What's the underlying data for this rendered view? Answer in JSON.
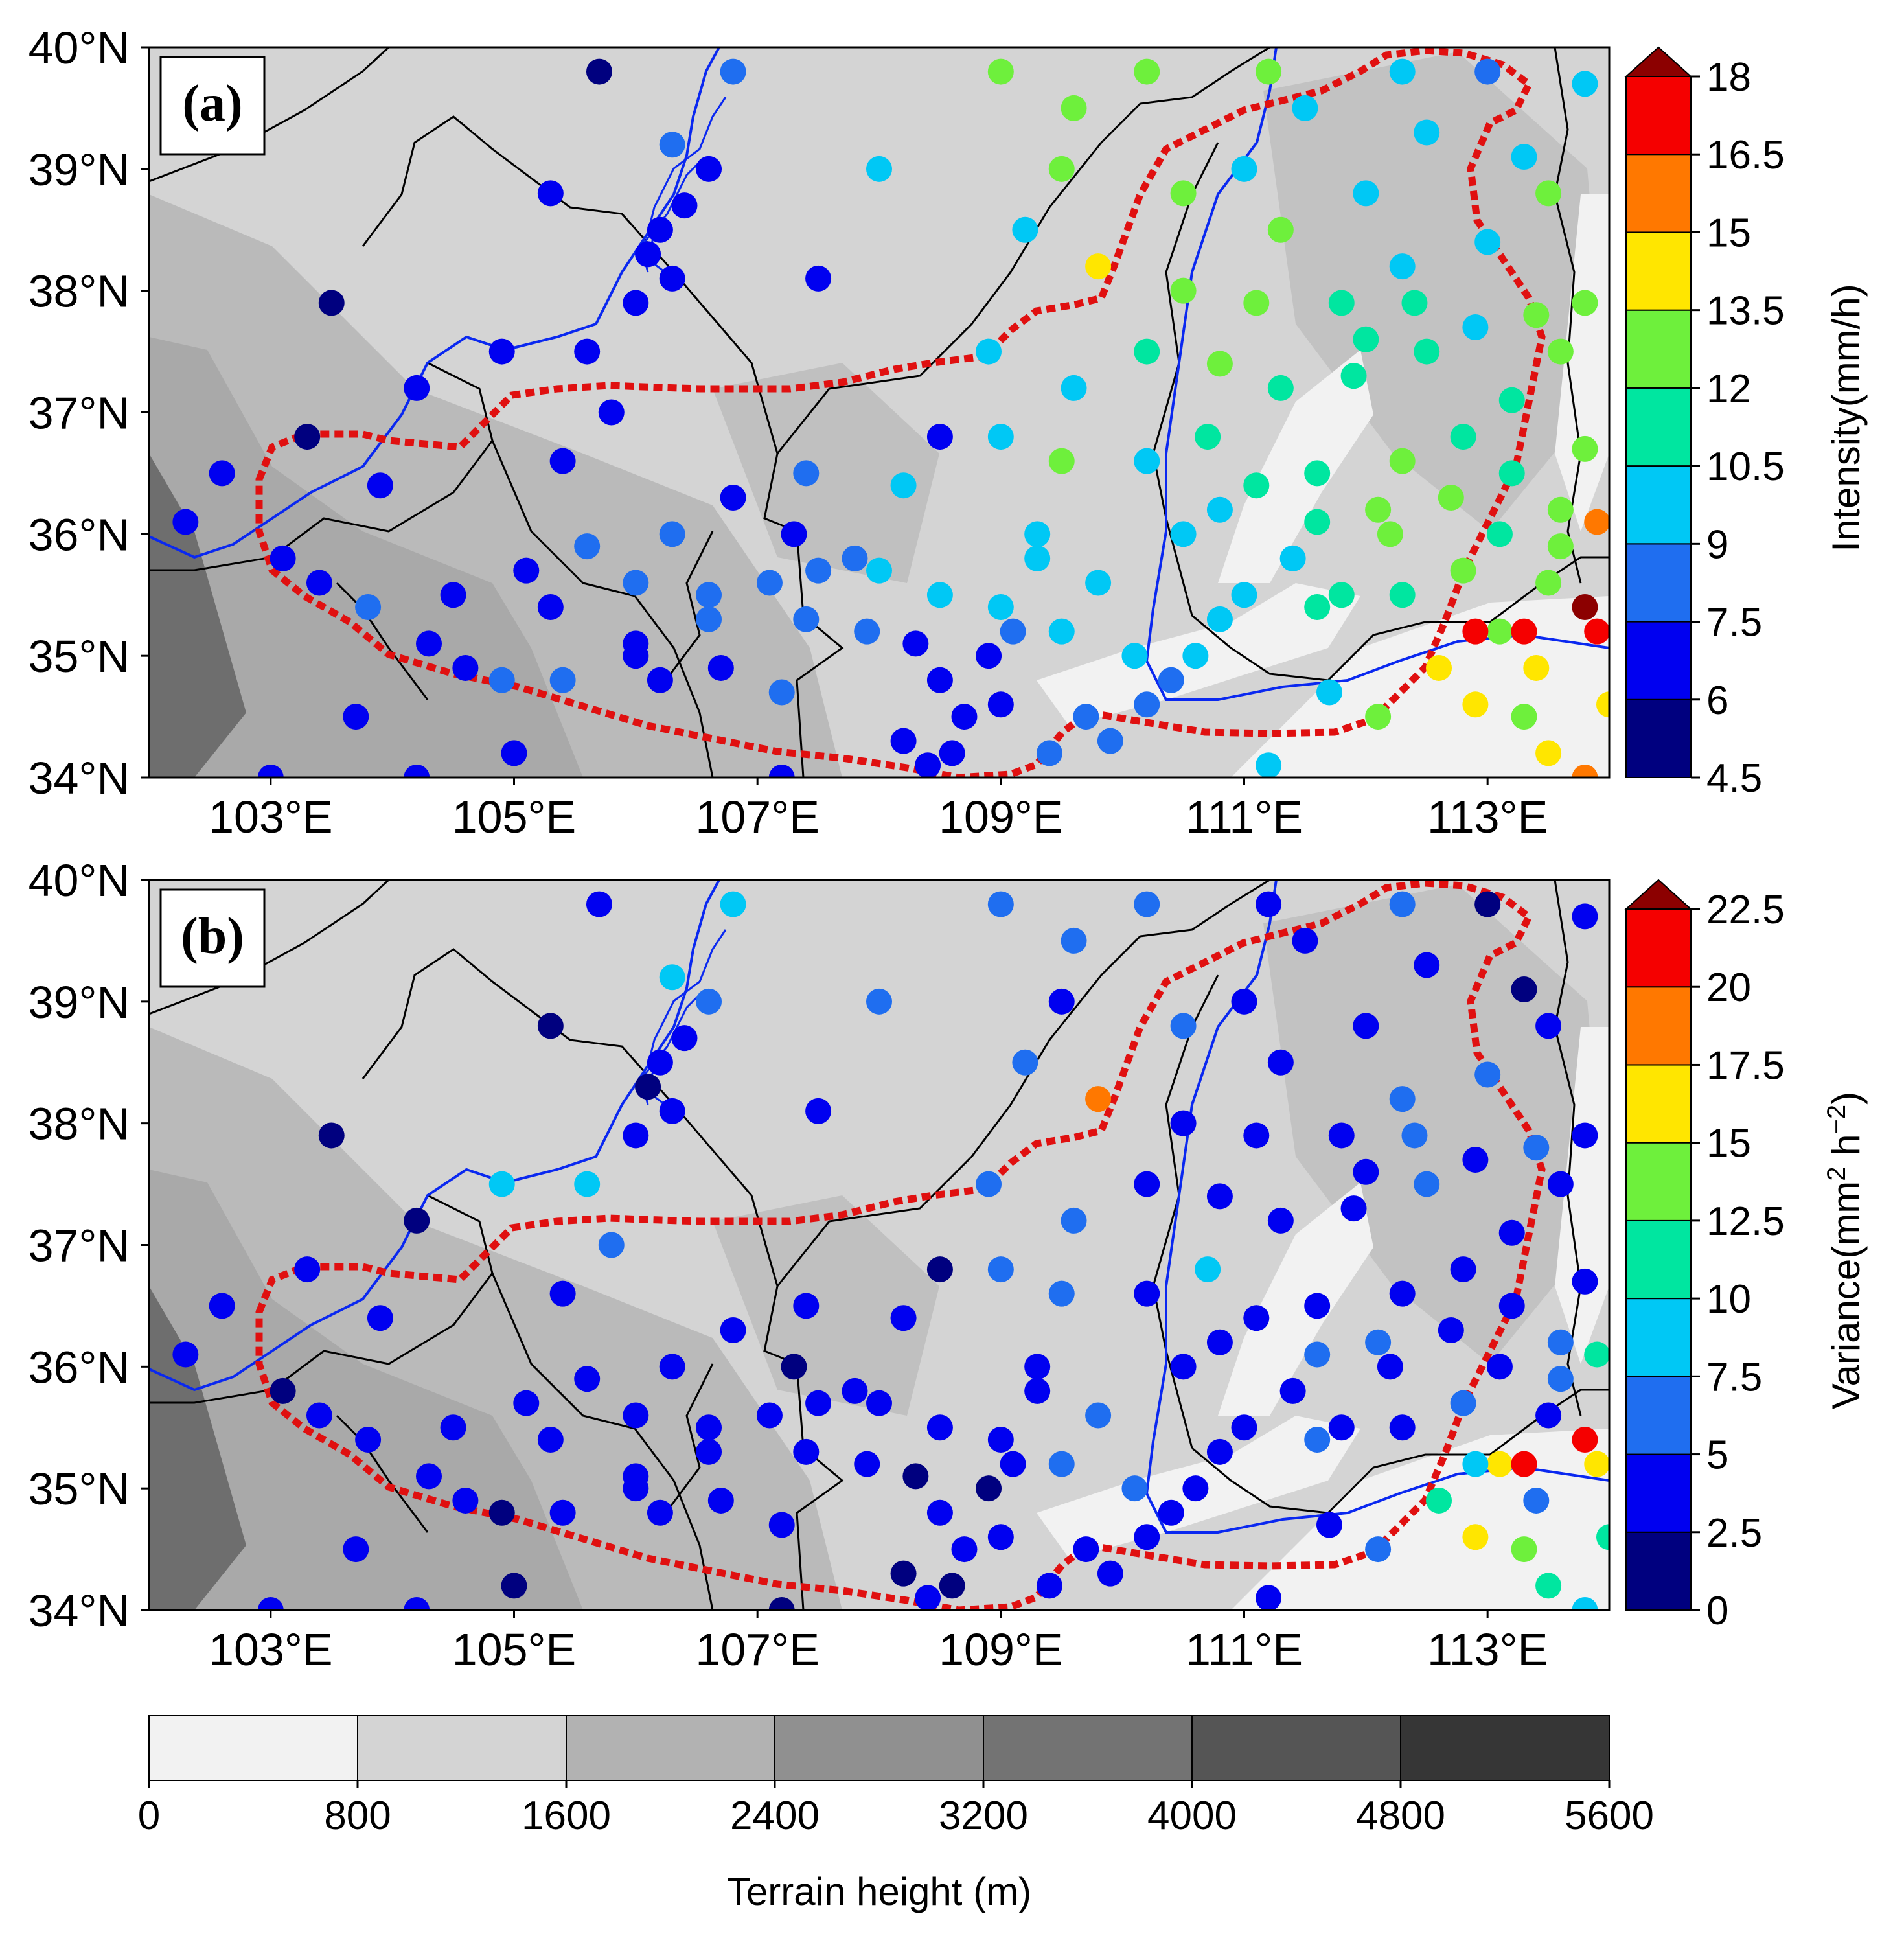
{
  "panels": [
    {
      "label": "(a)",
      "colorbar": {
        "title": "Intensity(mm/h)",
        "ticks": [
          "4.5",
          "6",
          "7.5",
          "9",
          "10.5",
          "12",
          "13.5",
          "15",
          "16.5",
          "18"
        ],
        "min": 4.5,
        "max": 18,
        "extend": "max",
        "colors": [
          "#00007f",
          "#0000f0",
          "#1f6ef0",
          "#00c8f5",
          "#00e6a0",
          "#6ef03c",
          "#ffe600",
          "#ff7800",
          "#f50000",
          "#8c0000"
        ]
      },
      "x_ticks": [
        "103°E",
        "105°E",
        "107°E",
        "109°E",
        "111°E",
        "113°E"
      ],
      "y_ticks": [
        "34°N",
        "35°N",
        "36°N",
        "37°N",
        "38°N",
        "39°N",
        "40°N"
      ]
    },
    {
      "label": "(b)",
      "colorbar": {
        "title": "Variance(mm",
        "title_sup": "2",
        "title_mid": " h",
        "title_sup2": "−2",
        "title_end": ")",
        "ticks": [
          "0",
          "2.5",
          "5",
          "7.5",
          "10",
          "12.5",
          "15",
          "17.5",
          "20",
          "22.5"
        ],
        "min": 0,
        "max": 22.5,
        "extend": "max",
        "colors": [
          "#00007f",
          "#0000f0",
          "#1f6ef0",
          "#00c8f5",
          "#00e6a0",
          "#6ef03c",
          "#ffe600",
          "#ff7800",
          "#f50000",
          "#8c0000"
        ]
      },
      "x_ticks": [
        "103°E",
        "105°E",
        "107°E",
        "109°E",
        "111°E",
        "113°E"
      ],
      "y_ticks": [
        "34°N",
        "35°N",
        "36°N",
        "37°N",
        "38°N",
        "39°N",
        "40°N"
      ]
    }
  ],
  "map": {
    "lon_range": [
      102,
      114
    ],
    "lat_range": [
      34,
      40
    ],
    "boundary_color": "#e01010",
    "river_color": "#0a28f0",
    "stations": [
      [
        105.7,
        39.8,
        5.0,
        3.2
      ],
      [
        106.8,
        39.8,
        8.8,
        8.5
      ],
      [
        103.5,
        37.9,
        5.0,
        1.5
      ],
      [
        107.5,
        38.1,
        6.2,
        4.0
      ],
      [
        105.3,
        38.8,
        6.5,
        2.0
      ],
      [
        106.3,
        39.2,
        8.0,
        7.5
      ],
      [
        106.6,
        39.0,
        7.0,
        6.5
      ],
      [
        106.4,
        38.7,
        6.4,
        3.5
      ],
      [
        106.2,
        38.5,
        6.2,
        3.0
      ],
      [
        106.1,
        38.3,
        6.0,
        1.5
      ],
      [
        106.3,
        38.1,
        6.5,
        3.0
      ],
      [
        106.0,
        37.9,
        6.0,
        3.0
      ],
      [
        108.0,
        39.0,
        10.0,
        6.0
      ],
      [
        109.0,
        39.8,
        12.0,
        6.0
      ],
      [
        109.6,
        39.5,
        12.0,
        5.5
      ],
      [
        110.2,
        39.8,
        12.5,
        6.0
      ],
      [
        109.2,
        38.5,
        9.0,
        6.0
      ],
      [
        109.5,
        39.0,
        13.0,
        4.0
      ],
      [
        109.8,
        38.2,
        14.0,
        18.0
      ],
      [
        111.2,
        39.8,
        12.5,
        4.0
      ],
      [
        111.5,
        39.5,
        10.0,
        3.0
      ],
      [
        112.3,
        39.8,
        9.0,
        5.0
      ],
      [
        113.0,
        39.8,
        8.0,
        1.5
      ],
      [
        113.8,
        39.7,
        9.5,
        4.0
      ],
      [
        111.0,
        39.0,
        10.0,
        4.0
      ],
      [
        112.0,
        38.8,
        9.5,
        3.0
      ],
      [
        112.5,
        39.3,
        9.0,
        3.0
      ],
      [
        113.3,
        39.1,
        10.0,
        1.5
      ],
      [
        110.5,
        38.8,
        12.0,
        5.0
      ],
      [
        111.3,
        38.5,
        12.0,
        3.0
      ],
      [
        112.3,
        38.2,
        10.0,
        5.0
      ],
      [
        113.0,
        38.4,
        10.0,
        5.0
      ],
      [
        113.5,
        38.8,
        12.0,
        4.0
      ],
      [
        110.5,
        38.0,
        12.0,
        3.0
      ],
      [
        111.1,
        37.9,
        12.0,
        4.0
      ],
      [
        111.8,
        37.9,
        11.0,
        3.0
      ],
      [
        113.4,
        37.8,
        12.0,
        5.0
      ],
      [
        113.8,
        37.9,
        13.0,
        4.0
      ],
      [
        112.4,
        37.9,
        10.5,
        5.0
      ],
      [
        112.9,
        37.7,
        10.0,
        4.0
      ],
      [
        113.6,
        37.5,
        12.0,
        3.0
      ],
      [
        113.2,
        37.1,
        11.0,
        4.0
      ],
      [
        112.8,
        36.8,
        11.5,
        3.0
      ],
      [
        113.8,
        36.7,
        13.0,
        4.0
      ],
      [
        111.9,
        37.3,
        11.0,
        3.0
      ],
      [
        111.6,
        36.5,
        11.5,
        4.0
      ],
      [
        110.2,
        37.5,
        10.5,
        4.0
      ],
      [
        110.8,
        37.4,
        12.5,
        4.0
      ],
      [
        109.6,
        37.2,
        10.0,
        5.0
      ],
      [
        108.9,
        37.5,
        10.0,
        5.0
      ],
      [
        108.5,
        36.8,
        7.0,
        2.0
      ],
      [
        109.0,
        36.8,
        9.5,
        5.0
      ],
      [
        109.5,
        36.6,
        12.5,
        5.0
      ],
      [
        110.2,
        36.6,
        10.0,
        4.0
      ],
      [
        110.7,
        36.8,
        11.5,
        7.5
      ],
      [
        111.1,
        36.4,
        11.0,
        4.0
      ],
      [
        112.3,
        36.6,
        12.0,
        3.0
      ],
      [
        112.7,
        36.3,
        12.5,
        4.0
      ],
      [
        113.1,
        36.0,
        11.5,
        4.0
      ],
      [
        113.6,
        36.2,
        13.0,
        6.5
      ],
      [
        113.9,
        36.1,
        16.0,
        10.0
      ],
      [
        111.6,
        36.1,
        11.0,
        5.0
      ],
      [
        112.2,
        36.0,
        12.0,
        4.0
      ],
      [
        110.5,
        36.0,
        9.0,
        4.0
      ],
      [
        109.3,
        36.0,
        9.0,
        4.0
      ],
      [
        109.3,
        35.8,
        10.0,
        3.0
      ],
      [
        108.5,
        35.5,
        9.0,
        3.0
      ],
      [
        109.0,
        35.4,
        9.5,
        4.0
      ],
      [
        109.8,
        35.6,
        9.5,
        5.0
      ],
      [
        108.2,
        36.4,
        9.0,
        3.0
      ],
      [
        107.4,
        36.5,
        7.5,
        3.5
      ],
      [
        107.5,
        35.7,
        8.0,
        2.5
      ],
      [
        107.8,
        35.8,
        8.0,
        2.5
      ],
      [
        107.1,
        35.6,
        8.0,
        3.0
      ],
      [
        106.6,
        35.5,
        7.5,
        3.0
      ],
      [
        106.3,
        36.0,
        8.0,
        2.5
      ],
      [
        106.0,
        35.6,
        7.5,
        2.5
      ],
      [
        105.6,
        35.9,
        7.5,
        2.5
      ],
      [
        105.4,
        36.6,
        7.0,
        3.0
      ],
      [
        105.8,
        37.0,
        7.0,
        7.0
      ],
      [
        105.6,
        37.5,
        7.0,
        8.0
      ],
      [
        104.9,
        37.5,
        7.0,
        8.0
      ],
      [
        104.2,
        37.2,
        6.5,
        2.0
      ],
      [
        103.9,
        36.4,
        6.5,
        3.5
      ],
      [
        103.3,
        36.8,
        5.5,
        2.5
      ],
      [
        102.6,
        36.5,
        6.5,
        2.5
      ],
      [
        102.3,
        36.1,
        6.5,
        3.5
      ],
      [
        103.1,
        35.8,
        6.0,
        2.0
      ],
      [
        103.4,
        35.6,
        7.0,
        3.5
      ],
      [
        103.8,
        35.4,
        7.5,
        3.0
      ],
      [
        104.5,
        35.5,
        7.0,
        2.5
      ],
      [
        105.1,
        35.7,
        7.0,
        3.5
      ],
      [
        105.3,
        35.4,
        7.0,
        2.5
      ],
      [
        104.3,
        35.1,
        7.0,
        3.5
      ],
      [
        103.7,
        34.5,
        7.0,
        3.0
      ],
      [
        104.6,
        34.9,
        7.0,
        2.5
      ],
      [
        104.9,
        34.8,
        7.5,
        2.0
      ],
      [
        105.4,
        34.8,
        7.5,
        2.5
      ],
      [
        106.2,
        34.8,
        7.0,
        3.0
      ],
      [
        106.0,
        35.0,
        6.5,
        2.5
      ],
      [
        106.0,
        35.1,
        7.0,
        4.0
      ],
      [
        106.6,
        35.3,
        7.5,
        3.0
      ],
      [
        106.7,
        34.9,
        7.0,
        2.5
      ],
      [
        107.2,
        34.7,
        7.5,
        3.5
      ],
      [
        107.4,
        35.3,
        7.5,
        4.0
      ],
      [
        107.9,
        35.2,
        7.5,
        3.0
      ],
      [
        108.3,
        35.1,
        7.0,
        2.0
      ],
      [
        108.5,
        34.8,
        7.0,
        3.0
      ],
      [
        108.9,
        35.0,
        6.0,
        2.0
      ],
      [
        109.1,
        35.2,
        8.5,
        2.5
      ],
      [
        108.2,
        34.3,
        7.0,
        2.0
      ],
      [
        108.4,
        34.1,
        7.0,
        3.5
      ],
      [
        108.7,
        34.5,
        6.5,
        2.5
      ],
      [
        109.0,
        34.6,
        7.0,
        3.0
      ],
      [
        109.4,
        34.2,
        8.0,
        3.5
      ],
      [
        109.7,
        34.5,
        7.5,
        3.0
      ],
      [
        110.2,
        34.6,
        8.0,
        2.5
      ],
      [
        110.4,
        34.8,
        8.0,
        3.0
      ],
      [
        110.6,
        35.0,
        9.0,
        2.5
      ],
      [
        111.0,
        35.5,
        9.5,
        4.0
      ],
      [
        111.4,
        35.8,
        10.0,
        4.0
      ],
      [
        111.8,
        35.5,
        10.5,
        4.0
      ],
      [
        112.3,
        35.5,
        11.5,
        3.5
      ],
      [
        112.8,
        35.7,
        12.5,
        5.0
      ],
      [
        113.1,
        35.2,
        13.0,
        15.0
      ],
      [
        112.6,
        34.9,
        14.5,
        11.0
      ],
      [
        112.9,
        34.6,
        14.0,
        15.5
      ],
      [
        113.3,
        34.5,
        12.0,
        12.5
      ],
      [
        113.4,
        34.9,
        14.0,
        5.0
      ],
      [
        113.8,
        35.4,
        18.0,
        22.0
      ],
      [
        113.9,
        35.2,
        17.0,
        17.0
      ],
      [
        113.5,
        34.2,
        14.0,
        12.0
      ],
      [
        113.8,
        34.0,
        15.5,
        9.0
      ],
      [
        114.0,
        34.6,
        14.0,
        11.0
      ],
      [
        113.3,
        35.2,
        17.5,
        20.0
      ],
      [
        112.9,
        35.2,
        16.5,
        8.0
      ],
      [
        111.2,
        34.1,
        9.0,
        3.0
      ],
      [
        111.7,
        34.7,
        10.0,
        2.5
      ],
      [
        112.1,
        34.5,
        12.0,
        6.0
      ],
      [
        110.8,
        35.3,
        10.0,
        4.0
      ],
      [
        110.1,
        35.0,
        9.0,
        6.0
      ],
      [
        109.9,
        34.3,
        8.0,
        2.5
      ],
      [
        109.5,
        35.2,
        9.0,
        5.0
      ],
      [
        108.0,
        35.7,
        9.0,
        4.5
      ],
      [
        107.3,
        36.0,
        7.0,
        2.0
      ],
      [
        106.8,
        36.3,
        7.0,
        4.0
      ],
      [
        103.0,
        34.0,
        6.0,
        3.0
      ],
      [
        104.2,
        34.0,
        6.5,
        3.0
      ],
      [
        105.0,
        34.2,
        6.5,
        2.0
      ],
      [
        107.2,
        34.0,
        6.5,
        2.0
      ],
      [
        108.6,
        34.2,
        6.5,
        2.0
      ],
      [
        112.5,
        37.5,
        10.5,
        5.0
      ],
      [
        112.0,
        37.6,
        11.0,
        4.0
      ],
      [
        111.3,
        37.2,
        11.0,
        3.0
      ],
      [
        110.8,
        36.2,
        10.0,
        4.0
      ],
      [
        111.6,
        35.4,
        10.5,
        5.0
      ],
      [
        112.1,
        36.2,
        12.0,
        5.0
      ],
      [
        113.2,
        36.5,
        11.5,
        4.0
      ],
      [
        113.5,
        35.6,
        12.0,
        4.5
      ],
      [
        113.6,
        35.9,
        12.5,
        5.5
      ]
    ]
  },
  "terrain_colorbar": {
    "title": "Terrain height (m)",
    "ticks": [
      "0",
      "800",
      "1600",
      "2400",
      "3200",
      "4000",
      "4800",
      "5600"
    ],
    "colors": [
      "#f2f2f2",
      "#d4d4d4",
      "#b2b2b2",
      "#909090",
      "#737373",
      "#555555",
      "#363636"
    ]
  }
}
